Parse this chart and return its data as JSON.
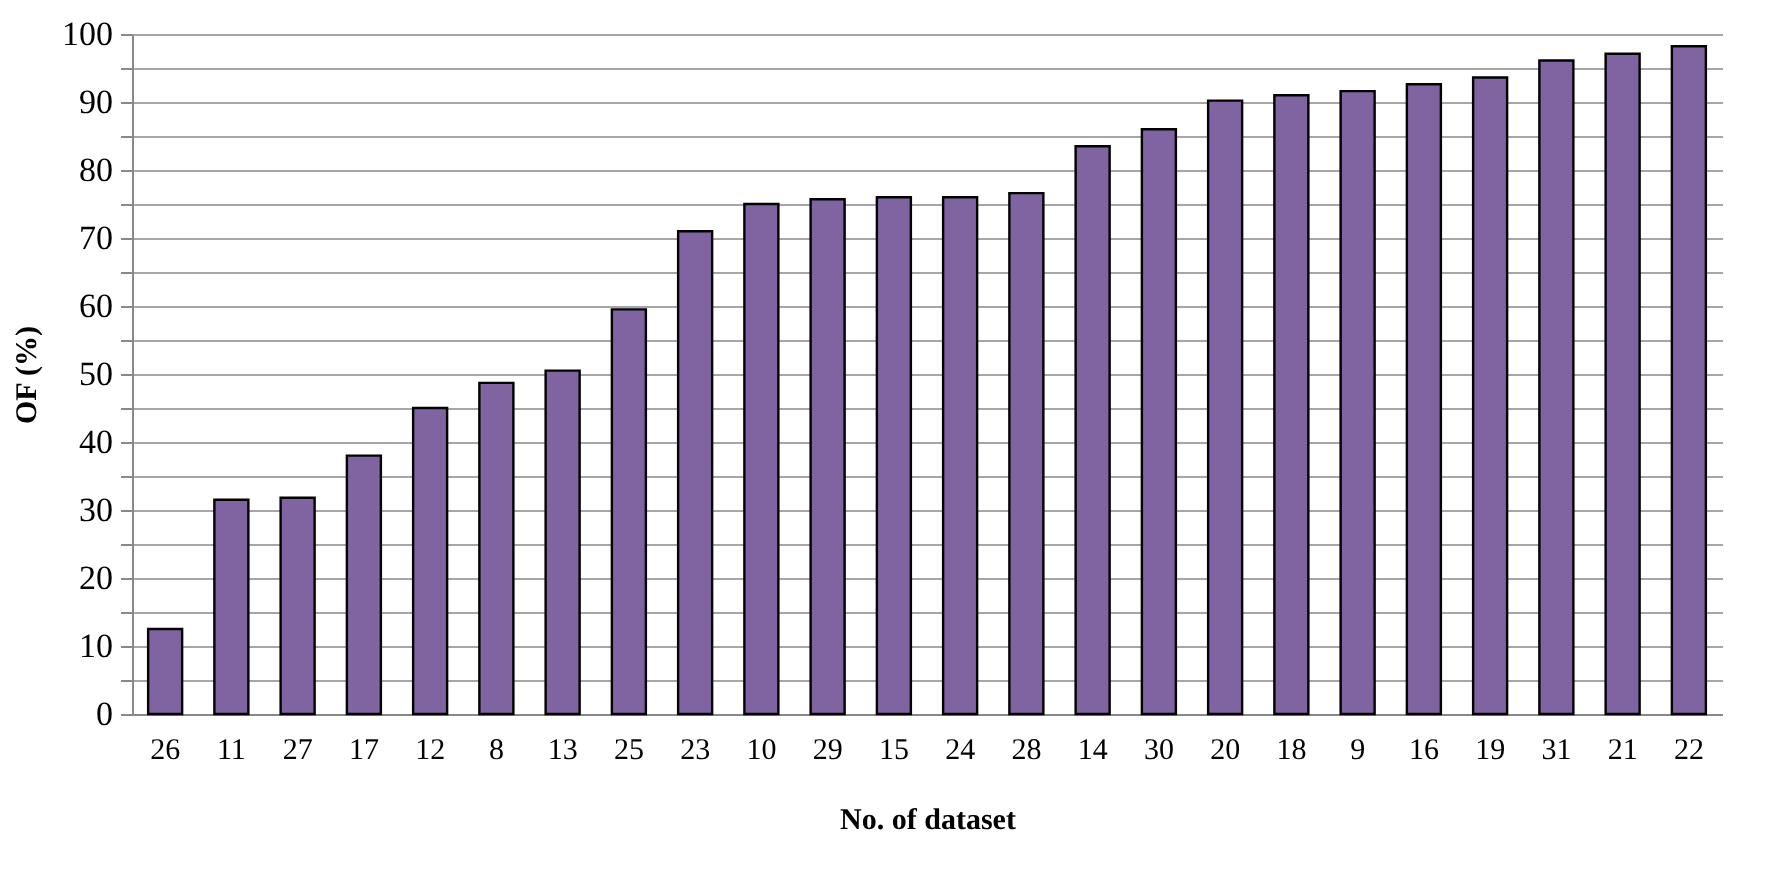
{
  "chart_data": {
    "type": "bar",
    "xlabel": "No. of dataset",
    "ylabel": "OF (%)",
    "categories": [
      "26",
      "11",
      "27",
      "17",
      "12",
      "8",
      "13",
      "25",
      "23",
      "10",
      "29",
      "15",
      "24",
      "28",
      "14",
      "30",
      "20",
      "18",
      "9",
      "16",
      "19",
      "31",
      "21",
      "22"
    ],
    "values": [
      12.5,
      31.5,
      31.8,
      38,
      45,
      48.7,
      50.5,
      59.5,
      71,
      75,
      75.7,
      76,
      76,
      76.6,
      83.5,
      86,
      90.2,
      91,
      91.6,
      92.6,
      93.6,
      96.1,
      97.1,
      98.2
    ],
    "color": "#8064a2",
    "ylim": [
      0,
      100
    ],
    "yticks": [
      0,
      {
        "value": 5,
        "label": null
      },
      10,
      {
        "value": 15,
        "label": null
      },
      20,
      {
        "value": 25,
        "label": null
      },
      30,
      {
        "value": 35,
        "label": null
      },
      40,
      {
        "value": 45,
        "label": null
      },
      50,
      {
        "value": 55,
        "label": null
      },
      60,
      {
        "value": 65,
        "label": null
      },
      70,
      {
        "value": 75,
        "label": null
      },
      80,
      {
        "value": 85,
        "label": null
      },
      90,
      {
        "value": 95,
        "label": null
      },
      100
    ],
    "grid": "y"
  }
}
